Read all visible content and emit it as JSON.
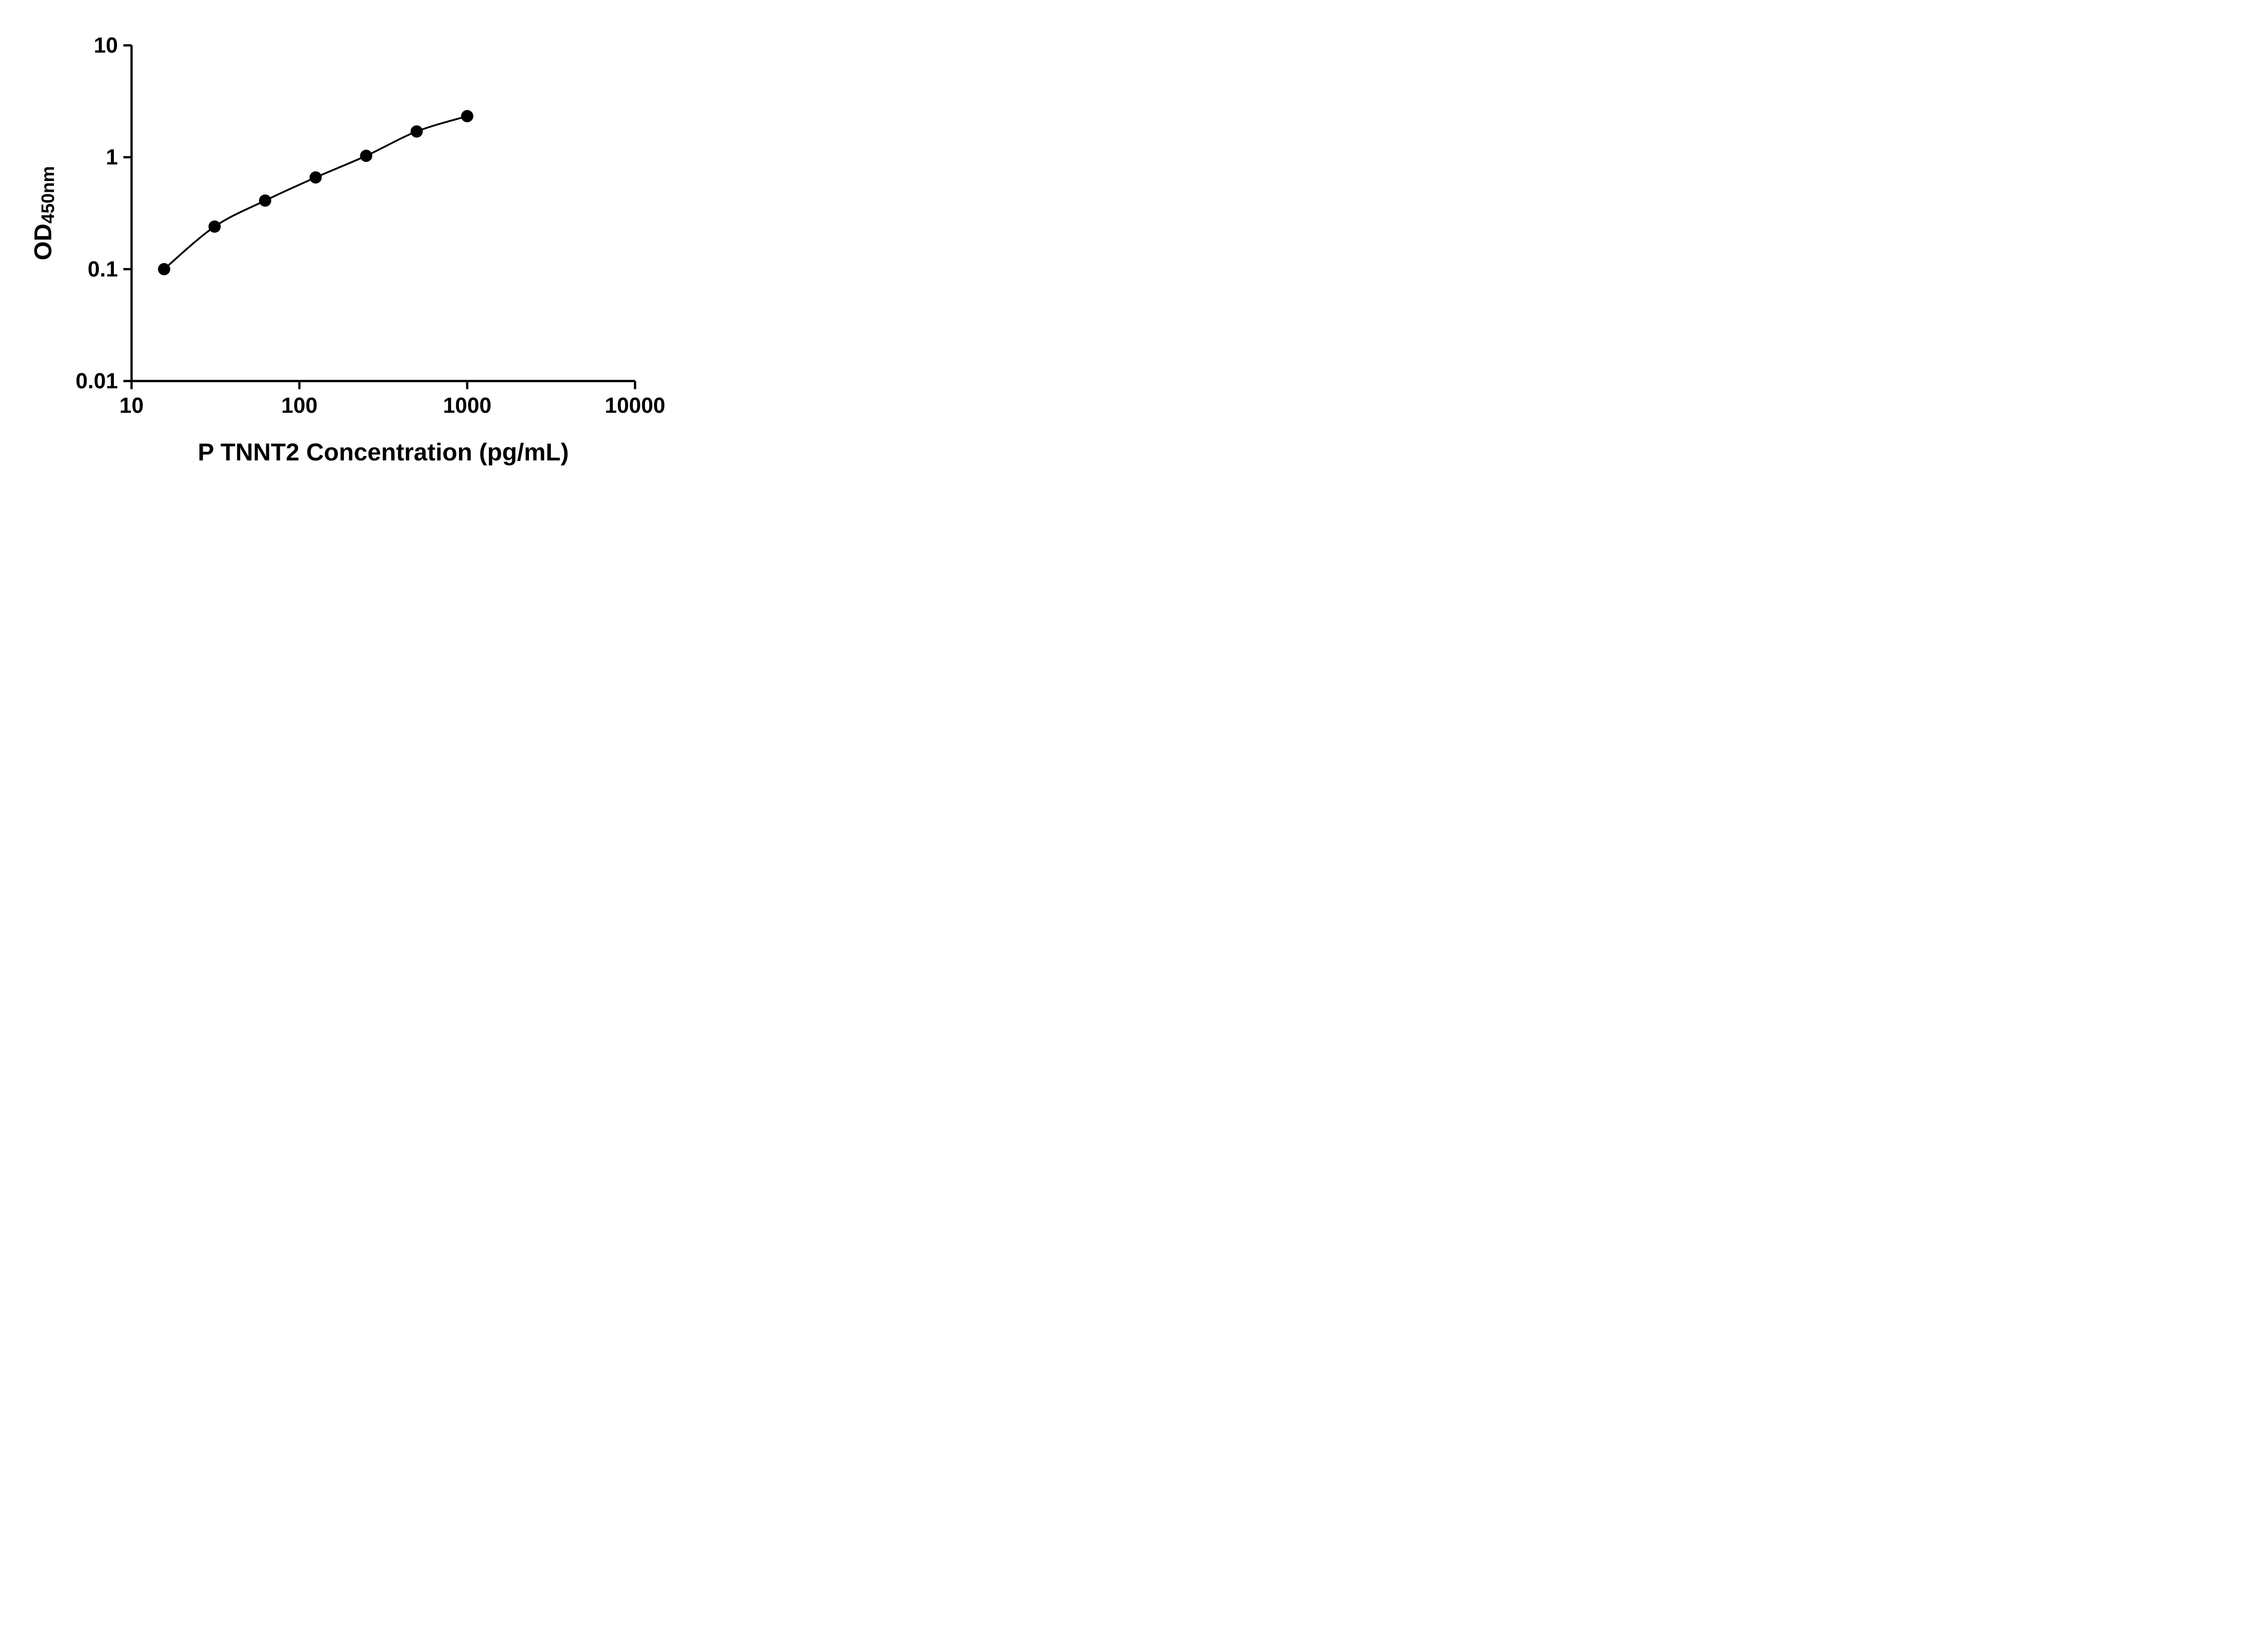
{
  "page": {
    "background": "#ffffff"
  },
  "chart_data": {
    "type": "scatter",
    "subtype": "log-log standard curve with fitted line",
    "title": "",
    "xlabel": "P TNNT2 Concentration (pg/mL)",
    "ylabel_main": "OD",
    "ylabel_sub": "450nm",
    "x_scale": "log",
    "y_scale": "log",
    "xlim": [
      10,
      10000
    ],
    "ylim": [
      0.01,
      10
    ],
    "grid": false,
    "legend": "none",
    "axis_color": "#000000",
    "marker_color": "#000000",
    "line_color": "#000000",
    "x_ticks": [
      {
        "value": 10,
        "label": "10"
      },
      {
        "value": 100,
        "label": "100"
      },
      {
        "value": 1000,
        "label": "1000"
      },
      {
        "value": 10000,
        "label": "10000"
      }
    ],
    "y_ticks": [
      {
        "value": 0.01,
        "label": "0.01"
      },
      {
        "value": 0.1,
        "label": "0.1"
      },
      {
        "value": 1,
        "label": "1"
      },
      {
        "value": 10,
        "label": "10"
      }
    ],
    "series": [
      {
        "name": "standard-curve",
        "marker": "filled-circle",
        "x": [
          15.63,
          31.25,
          62.5,
          125,
          250,
          500,
          1000
        ],
        "y": [
          0.1,
          0.24,
          0.41,
          0.66,
          1.03,
          1.7,
          2.33
        ]
      }
    ]
  }
}
